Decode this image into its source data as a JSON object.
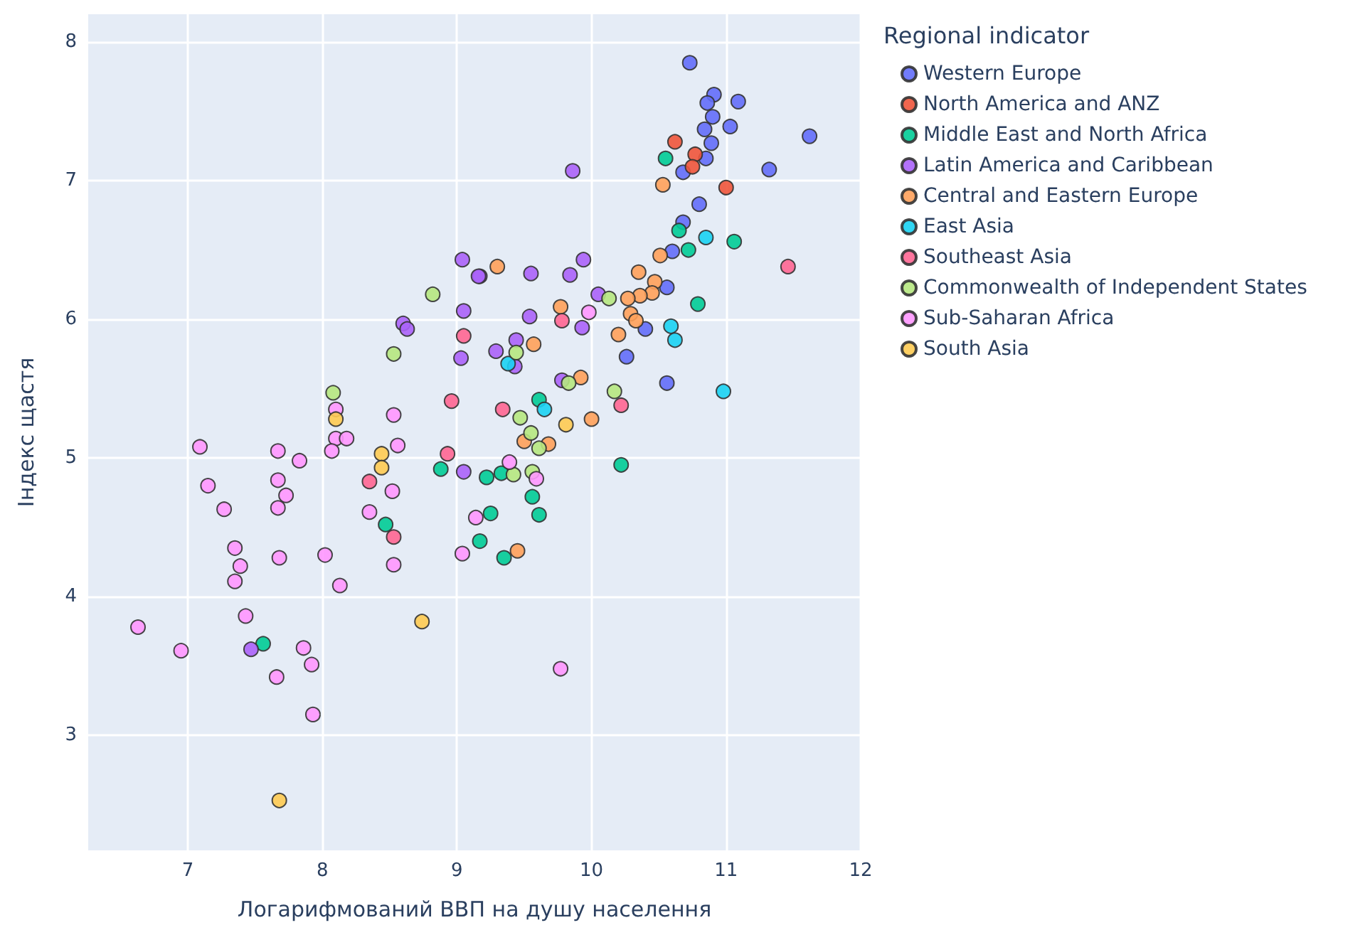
{
  "chart_data": {
    "type": "scatter",
    "xlabel": "Логарифмований ВВП на душу населення",
    "ylabel": "Індекс щастя",
    "legend_title": "Regional indicator",
    "xlim": [
      6.26,
      12
    ],
    "ylim": [
      2.17,
      8.2
    ],
    "xticks": [
      7,
      8,
      9,
      10,
      11,
      12
    ],
    "yticks": [
      3,
      4,
      5,
      6,
      7,
      8
    ],
    "grid": true,
    "legend": "top right",
    "marker": "circle",
    "series": [
      {
        "name": "Western Europe",
        "color": "#636efa",
        "x": [
          10.73,
          10.91,
          10.86,
          11.09,
          10.9,
          11.03,
          10.84,
          10.89,
          10.85,
          10.68,
          11.62,
          11.32,
          10.8,
          10.68,
          10.65,
          10.6,
          10.56,
          10.4,
          10.26,
          10.56
        ],
        "values": [
          7.85,
          7.62,
          7.56,
          7.57,
          7.46,
          7.39,
          7.37,
          7.27,
          7.16,
          7.06,
          7.32,
          7.08,
          6.83,
          6.7,
          null,
          6.49,
          6.23,
          5.93,
          5.73,
          5.54
        ]
      },
      {
        "name": "North America and ANZ",
        "color": "#ef553b",
        "x": [
          10.62,
          10.77,
          10.75,
          11.0
        ],
        "values": [
          7.28,
          7.19,
          7.1,
          6.95
        ]
      },
      {
        "name": "Middle East and North Africa",
        "color": "#00cc96",
        "x": [
          10.55,
          10.65,
          10.72,
          11.06,
          10.79,
          9.61,
          10.22,
          9.22,
          9.33,
          9.56,
          9.25,
          9.61,
          9.17,
          9.35,
          8.88,
          8.47,
          7.56
        ],
        "values": [
          7.16,
          6.64,
          6.5,
          6.56,
          6.11,
          5.42,
          4.95,
          4.86,
          4.89,
          4.72,
          4.6,
          4.59,
          4.4,
          4.28,
          4.92,
          4.52,
          3.66
        ]
      },
      {
        "name": "Latin America and Caribbean",
        "color": "#ab63fa",
        "x": [
          9.86,
          9.94,
          9.17,
          9.55,
          9.84,
          10.05,
          9.54,
          9.93,
          9.44,
          9.29,
          9.43,
          9.78,
          9.04,
          9.16,
          9.05,
          8.6,
          8.63,
          9.03,
          9.05,
          7.47
        ],
        "values": [
          7.07,
          6.43,
          6.31,
          6.33,
          6.32,
          6.18,
          6.02,
          5.94,
          5.85,
          5.77,
          5.66,
          5.56,
          6.43,
          6.31,
          6.06,
          5.97,
          5.93,
          5.72,
          4.9,
          3.62
        ]
      },
      {
        "name": "Central and Eastern Europe",
        "color": "#ffa15a",
        "x": [
          10.53,
          10.51,
          9.3,
          10.35,
          10.47,
          10.45,
          10.36,
          10.27,
          9.77,
          10.29,
          10.33,
          10.2,
          9.57,
          9.92,
          10.0,
          9.5,
          9.68,
          9.45
        ],
        "values": [
          6.97,
          6.46,
          6.38,
          6.34,
          6.27,
          6.19,
          6.17,
          6.15,
          6.09,
          6.04,
          5.99,
          5.89,
          5.82,
          5.58,
          5.28,
          5.12,
          5.1,
          4.33
        ]
      },
      {
        "name": "East Asia",
        "color": "#19d3f3",
        "x": [
          10.85,
          10.59,
          10.62,
          9.38,
          9.65,
          10.98
        ],
        "values": [
          6.59,
          5.95,
          5.85,
          5.68,
          5.35,
          5.48
        ]
      },
      {
        "name": "Southeast Asia",
        "color": "#ff6692",
        "x": [
          11.46,
          9.78,
          9.34,
          10.22,
          9.05,
          8.96,
          8.93,
          8.35,
          8.53
        ],
        "values": [
          6.38,
          5.99,
          5.35,
          5.38,
          5.88,
          5.41,
          5.03,
          4.83,
          4.43
        ]
      },
      {
        "name": "Commonwealth of Independent States",
        "color": "#b6e880",
        "x": [
          8.82,
          8.53,
          8.08,
          10.13,
          9.44,
          9.83,
          10.17,
          9.47,
          9.55,
          9.61,
          9.42,
          9.56
        ],
        "values": [
          6.18,
          5.75,
          5.47,
          6.15,
          5.76,
          5.54,
          5.48,
          5.29,
          5.18,
          5.07,
          4.88,
          4.9
        ]
      },
      {
        "name": "Sub-Saharan Africa",
        "color": "#ff97ff",
        "x": [
          8.1,
          8.53,
          7.09,
          7.67,
          7.83,
          7.15,
          7.67,
          7.73,
          7.27,
          7.67,
          8.1,
          8.18,
          8.07,
          8.56,
          8.52,
          8.35,
          7.35,
          7.39,
          7.35,
          7.68,
          8.02,
          8.53,
          8.13,
          9.04,
          9.14,
          6.63,
          7.43,
          6.95,
          7.86,
          7.92,
          7.66,
          7.93,
          9.39,
          9.59,
          9.77,
          9.98
        ],
        "values": [
          5.35,
          5.31,
          5.08,
          5.05,
          4.98,
          4.8,
          4.84,
          4.73,
          4.63,
          4.64,
          5.14,
          5.14,
          5.05,
          5.09,
          4.76,
          4.61,
          4.35,
          4.22,
          4.11,
          4.28,
          4.3,
          4.23,
          4.08,
          4.31,
          4.57,
          3.78,
          3.86,
          3.61,
          3.63,
          3.51,
          3.42,
          3.15,
          4.97,
          4.85,
          3.48,
          6.05
        ]
      },
      {
        "name": "South Asia",
        "color": "#fecb52",
        "x": [
          8.1,
          8.44,
          8.44,
          8.74,
          7.68,
          9.81
        ],
        "values": [
          5.28,
          5.03,
          4.93,
          3.82,
          2.53,
          5.24
        ]
      }
    ]
  }
}
